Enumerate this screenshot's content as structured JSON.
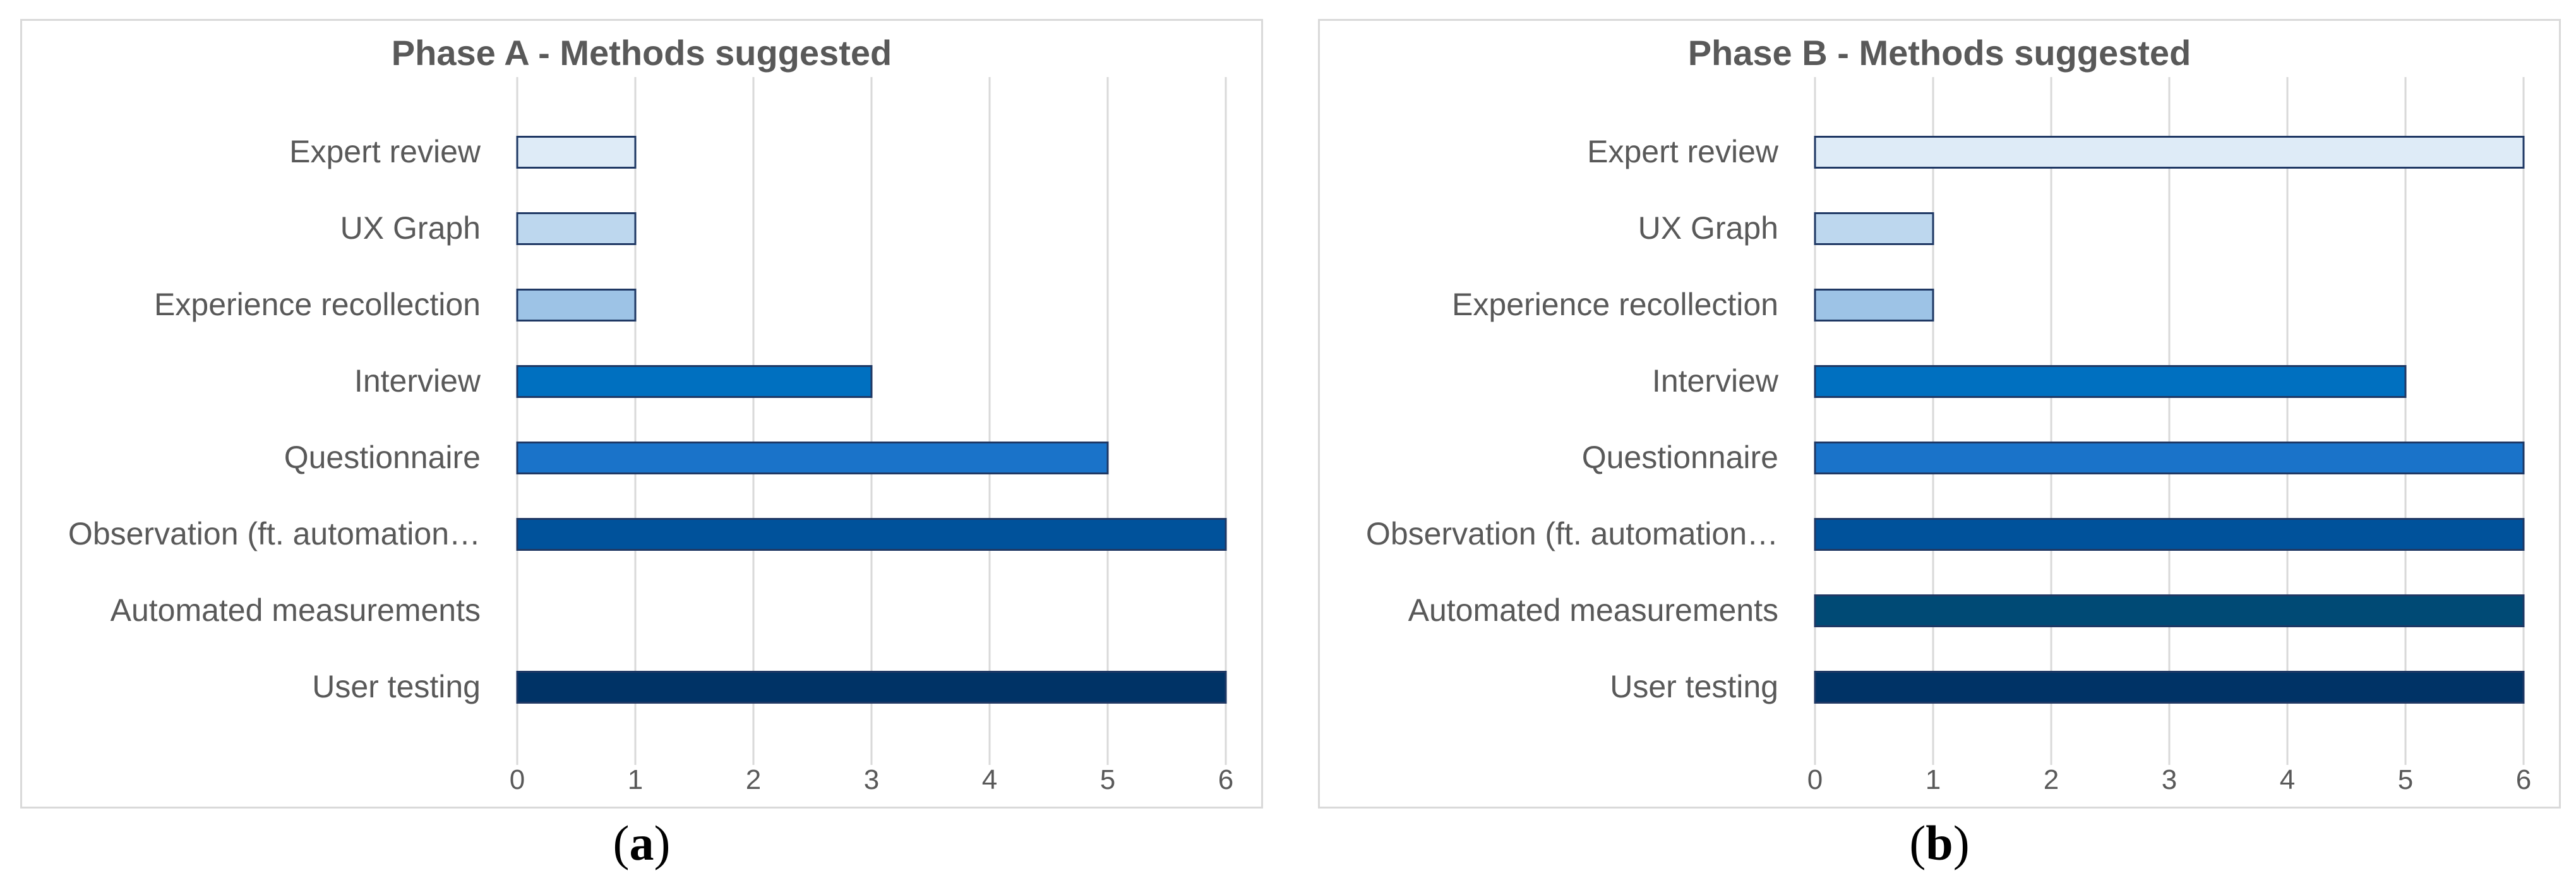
{
  "chart_data": [
    {
      "type": "bar",
      "orientation": "horizontal",
      "title": "Phase A - Methods suggested",
      "categories": [
        "Expert review",
        "UX Graph",
        "Experience recollection",
        "Interview",
        "Questionnaire",
        "Observation (ft. automation…",
        "Automated measurements",
        "User testing"
      ],
      "values": [
        1,
        1,
        1,
        3,
        5,
        6,
        0,
        6
      ],
      "bar_colors": [
        "#deebf7",
        "#bdd7ee",
        "#9dc3e6",
        "#0070c0",
        "#1a73c9",
        "#00529b",
        "#004a75",
        "#003366"
      ],
      "xlim": [
        0,
        6
      ],
      "xticks": [
        "0",
        "1",
        "2",
        "3",
        "4",
        "5",
        "6"
      ],
      "grid": "vertical",
      "legend": "none"
    },
    {
      "type": "bar",
      "orientation": "horizontal",
      "title": "Phase B - Methods suggested",
      "categories": [
        "Expert review",
        "UX Graph",
        "Experience recollection",
        "Interview",
        "Questionnaire",
        "Observation (ft. automation…",
        "Automated measurements",
        "User testing"
      ],
      "values": [
        6,
        1,
        1,
        5,
        6,
        6,
        6,
        6
      ],
      "bar_colors": [
        "#deebf7",
        "#bdd7ee",
        "#9dc3e6",
        "#0070c0",
        "#1a73c9",
        "#00529b",
        "#004a75",
        "#003366"
      ],
      "xlim": [
        0,
        6
      ],
      "xticks": [
        "0",
        "1",
        "2",
        "3",
        "4",
        "5",
        "6"
      ],
      "grid": "vertical",
      "legend": "none"
    }
  ],
  "captions": [
    {
      "open": "(",
      "letter": "a",
      "close": ")"
    },
    {
      "open": "(",
      "letter": "b",
      "close": ")"
    }
  ],
  "style": {
    "bar_stroke": "#1f3864",
    "grid_color": "#d9d9d9",
    "text_color": "#595959"
  }
}
